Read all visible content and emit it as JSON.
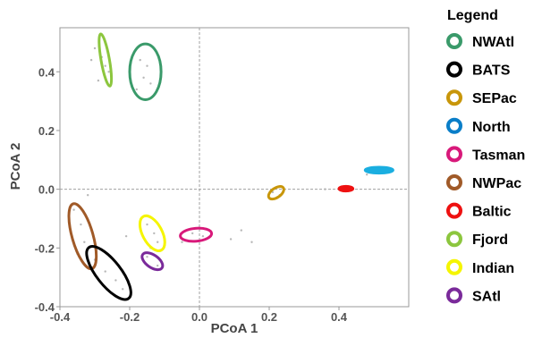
{
  "chart_data": {
    "type": "scatter",
    "title": "",
    "xlabel": "PCoA 1",
    "ylabel": "PCoA 2",
    "xlim": [
      -0.4,
      0.6
    ],
    "ylim": [
      -0.4,
      0.55
    ],
    "x_ticks": [
      -0.4,
      -0.2,
      0.0,
      0.2,
      0.4
    ],
    "y_ticks": [
      -0.4,
      -0.2,
      0.0,
      0.2,
      0.4
    ],
    "x_tick_labels": [
      "-0.4",
      "-0.2",
      "0.0",
      "0.2",
      "0.4"
    ],
    "y_tick_labels": [
      "-0.4",
      "-0.2",
      "0.0",
      "0.2",
      "0.4"
    ],
    "reference_lines": {
      "x": 0.0,
      "y": 0.0
    },
    "legend": {
      "title": "Legend",
      "placement": "outside-right",
      "entries": [
        {
          "name": "NWAtl",
          "color": "#3a9a6a"
        },
        {
          "name": "BATS",
          "color": "#000000"
        },
        {
          "name": "SEPac",
          "color": "#c8960a"
        },
        {
          "name": "North",
          "color": "#0a7ec8"
        },
        {
          "name": "Tasman",
          "color": "#d8197a"
        },
        {
          "name": "NWPac",
          "color": "#a05a28"
        },
        {
          "name": "Baltic",
          "color": "#ee1111"
        },
        {
          "name": "Fjord",
          "color": "#8cc63e"
        },
        {
          "name": "Indian",
          "color": "#f5f500"
        },
        {
          "name": "SAtl",
          "color": "#7a2a9a"
        }
      ]
    },
    "groups": [
      {
        "name": "NWAtl",
        "color": "#3a9a6a",
        "cx": -0.155,
        "cy": 0.4,
        "rx": 0.045,
        "ry": 0.095,
        "angle": 0,
        "fill": false
      },
      {
        "name": "Fjord",
        "color": "#8cc63e",
        "cx": -0.27,
        "cy": 0.44,
        "rx": 0.012,
        "ry": 0.09,
        "angle": -10,
        "fill": false
      },
      {
        "name": "NWPac",
        "color": "#a05a28",
        "cx": -0.335,
        "cy": -0.16,
        "rx": 0.03,
        "ry": 0.115,
        "angle": -16,
        "fill": false
      },
      {
        "name": "BATS",
        "color": "#000000",
        "cx": -0.26,
        "cy": -0.285,
        "rx": 0.035,
        "ry": 0.11,
        "angle": -38,
        "fill": false
      },
      {
        "name": "Indian",
        "color": "#f5f500",
        "cx": -0.135,
        "cy": -0.15,
        "rx": 0.028,
        "ry": 0.065,
        "angle": -28,
        "fill": false
      },
      {
        "name": "SAtl",
        "color": "#7a2a9a",
        "cx": -0.135,
        "cy": -0.245,
        "rx": 0.018,
        "ry": 0.04,
        "angle": -55,
        "fill": false
      },
      {
        "name": "Tasman",
        "color": "#d8197a",
        "cx": -0.01,
        "cy": -0.155,
        "rx": 0.045,
        "ry": 0.022,
        "angle": -5,
        "fill": false
      },
      {
        "name": "SEPac",
        "color": "#c8960a",
        "cx": 0.22,
        "cy": -0.012,
        "rx": 0.025,
        "ry": 0.016,
        "angle": -35,
        "fill": false
      },
      {
        "name": "Baltic",
        "color": "#ee1111",
        "cx": 0.42,
        "cy": 0.002,
        "rx": 0.02,
        "ry": 0.008,
        "angle": 0,
        "fill": true
      },
      {
        "name": "North",
        "color": "#1aaee0",
        "cx": 0.515,
        "cy": 0.065,
        "rx": 0.04,
        "ry": 0.01,
        "angle": 0,
        "fill": true
      }
    ],
    "points": [
      {
        "x": -0.19,
        "y": 0.46
      },
      {
        "x": -0.17,
        "y": 0.44
      },
      {
        "x": -0.15,
        "y": 0.42
      },
      {
        "x": -0.16,
        "y": 0.38
      },
      {
        "x": -0.14,
        "y": 0.36
      },
      {
        "x": -0.18,
        "y": 0.34
      },
      {
        "x": -0.13,
        "y": 0.32
      },
      {
        "x": -0.2,
        "y": 0.41
      },
      {
        "x": -0.3,
        "y": 0.48
      },
      {
        "x": -0.28,
        "y": 0.45
      },
      {
        "x": -0.27,
        "y": 0.42
      },
      {
        "x": -0.26,
        "y": 0.4
      },
      {
        "x": -0.29,
        "y": 0.37
      },
      {
        "x": -0.31,
        "y": 0.44
      },
      {
        "x": -0.36,
        "y": -0.07
      },
      {
        "x": -0.34,
        "y": -0.12
      },
      {
        "x": -0.33,
        "y": -0.18
      },
      {
        "x": -0.35,
        "y": -0.22
      },
      {
        "x": -0.3,
        "y": -0.24
      },
      {
        "x": -0.27,
        "y": -0.28
      },
      {
        "x": -0.24,
        "y": -0.31
      },
      {
        "x": -0.22,
        "y": -0.34
      },
      {
        "x": -0.15,
        "y": -0.12
      },
      {
        "x": -0.13,
        "y": -0.15
      },
      {
        "x": -0.12,
        "y": -0.18
      },
      {
        "x": -0.14,
        "y": -0.2
      },
      {
        "x": -0.15,
        "y": -0.23
      },
      {
        "x": -0.12,
        "y": -0.26
      },
      {
        "x": -0.02,
        "y": -0.15
      },
      {
        "x": 0.01,
        "y": -0.16
      },
      {
        "x": 0.21,
        "y": -0.01
      },
      {
        "x": 0.23,
        "y": -0.02
      },
      {
        "x": 0.09,
        "y": -0.17
      },
      {
        "x": 0.12,
        "y": -0.14
      },
      {
        "x": 0.36,
        "y": 0.0
      },
      {
        "x": 0.44,
        "y": 0.0
      },
      {
        "x": 0.48,
        "y": 0.05
      },
      {
        "x": 0.52,
        "y": 0.06
      },
      {
        "x": -0.05,
        "y": -0.18
      },
      {
        "x": 0.15,
        "y": -0.18
      },
      {
        "x": -0.21,
        "y": -0.16
      },
      {
        "x": -0.32,
        "y": -0.02
      }
    ]
  }
}
